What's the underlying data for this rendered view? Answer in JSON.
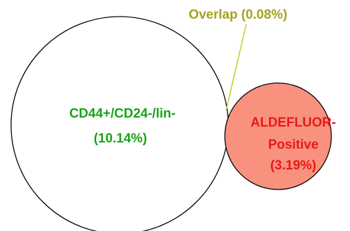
{
  "diagram": {
    "type": "venn",
    "sets": [
      {
        "label_line1": "CD44+/CD24-/lin-",
        "label_line2": "(10.14%)",
        "fill_color": "#ffffff",
        "stroke_color": "#000000",
        "text_color": "#19a319"
      },
      {
        "label_line1": "ALDEFLUOR-",
        "label_line2": "Positive",
        "label_line3": "(3.19%)",
        "fill_color": "#f9917f",
        "stroke_color": "#000000",
        "text_color": "#e81919"
      }
    ],
    "overlap": {
      "label": "Overlap (0.08%)",
      "text_color": "#a3a31f",
      "leader_color": "#c9c92a"
    }
  }
}
